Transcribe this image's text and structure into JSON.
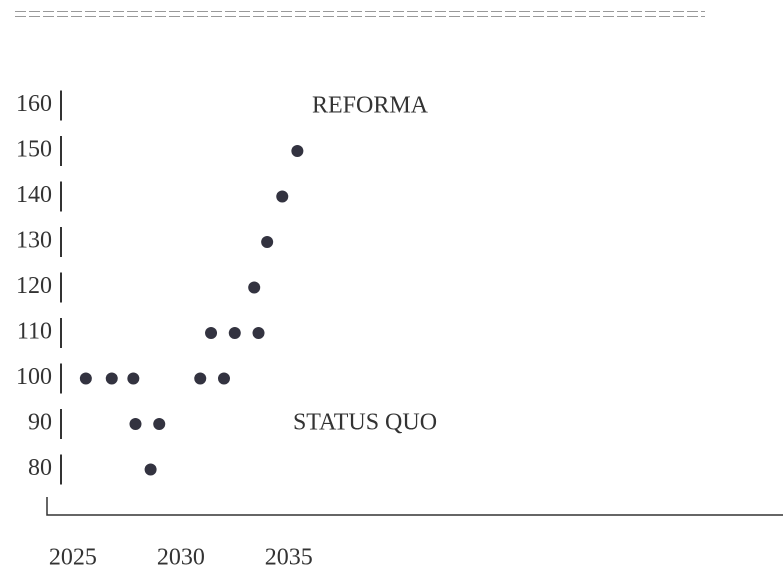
{
  "chart_data": {
    "type": "scatter",
    "annotations": [
      "REFORMA",
      "STATUS QUO"
    ],
    "x": [
      2025.6,
      2026.8,
      2027.8,
      2027.9,
      2029.0,
      2028.6,
      2030.9,
      2032.0,
      2031.4,
      2032.5,
      2033.6,
      2033.4,
      2034.0,
      2034.7,
      2035.4
    ],
    "values": [
      100,
      100,
      100,
      90,
      90,
      80,
      100,
      100,
      110,
      110,
      110,
      120,
      130,
      140,
      150
    ],
    "color": "#333340",
    "xlim": [
      2023.8,
      2057.9
    ],
    "xticks": [
      2025,
      2030,
      2035
    ],
    "ylim": [
      70,
      170
    ],
    "yticks": [
      80,
      90,
      100,
      110,
      120,
      130,
      140,
      150,
      160
    ]
  }
}
